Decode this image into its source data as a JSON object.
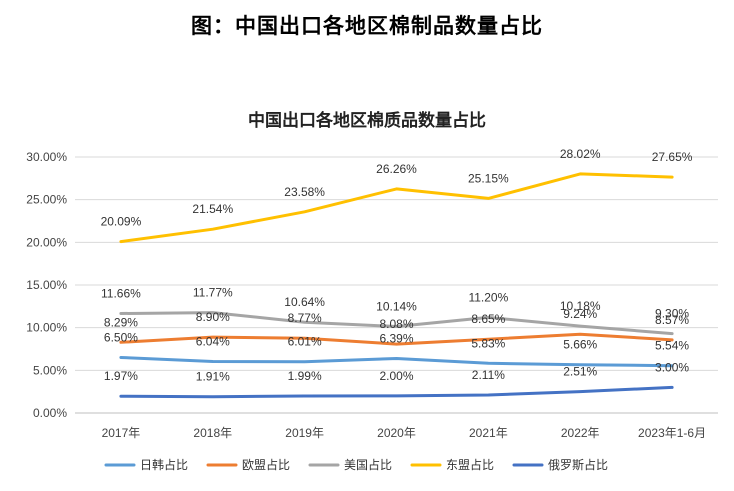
{
  "figure_title": "图：中国出口各地区棉制品数量占比",
  "chart_data": {
    "type": "line",
    "title": "中国出口各地区棉质品数量占比",
    "categories": [
      "2017年",
      "2018年",
      "2019年",
      "2020年",
      "2021年",
      "2022年",
      "2023年1-6月"
    ],
    "y_ticks": [
      "0.00%",
      "5.00%",
      "10.00%",
      "15.00%",
      "20.00%",
      "25.00%",
      "30.00%"
    ],
    "ylim": [
      0,
      30
    ],
    "grid": true,
    "legend_position": "bottom",
    "series": [
      {
        "name": "日韩占比",
        "color": "#5B9BD5",
        "values": [
          6.5,
          6.04,
          6.01,
          6.39,
          5.83,
          5.66,
          5.54
        ],
        "labels": [
          "6.50%",
          "6.04%",
          "6.01%",
          "6.39%",
          "5.83%",
          "5.66%",
          "5.54%"
        ]
      },
      {
        "name": "欧盟占比",
        "color": "#ED7D31",
        "values": [
          8.29,
          8.9,
          8.77,
          8.08,
          8.65,
          9.24,
          8.57
        ],
        "labels": [
          "8.29%",
          "8.90%",
          "8.77%",
          "8.08%",
          "8.65%",
          "9.24%",
          "8.57%"
        ]
      },
      {
        "name": "美国占比",
        "color": "#A5A5A5",
        "values": [
          11.66,
          11.77,
          10.64,
          10.14,
          11.2,
          10.18,
          9.3
        ],
        "labels": [
          "11.66%",
          "11.77%",
          "10.64%",
          "10.14%",
          "11.20%",
          "10.18%",
          "9.30%"
        ]
      },
      {
        "name": "东盟占比",
        "color": "#FFC000",
        "values": [
          20.09,
          21.54,
          23.58,
          26.26,
          25.15,
          28.02,
          27.65
        ],
        "labels": [
          "20.09%",
          "21.54%",
          "23.58%",
          "26.26%",
          "25.15%",
          "28.02%",
          "27.65%"
        ]
      },
      {
        "name": "俄罗斯占比",
        "color": "#4472C4",
        "values": [
          1.97,
          1.91,
          1.99,
          2.0,
          2.11,
          2.51,
          3.0
        ],
        "labels": [
          "1.97%",
          "1.91%",
          "1.99%",
          "2.00%",
          "2.11%",
          "2.51%",
          "3.00%"
        ]
      }
    ]
  }
}
